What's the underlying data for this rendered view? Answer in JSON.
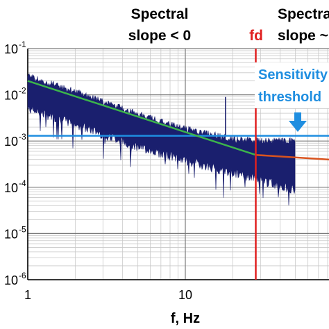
{
  "chart_data": {
    "type": "line",
    "x_scale": "log",
    "y_scale": "log",
    "xlim": [
      1,
      100
    ],
    "ylim": [
      1e-06,
      0.1
    ],
    "grid": true,
    "xlabel": "f, Hz",
    "x_ticks": [
      {
        "value": 1,
        "label": "1"
      },
      {
        "value": 10,
        "label": "10"
      }
    ],
    "y_ticks": [
      {
        "value": 0.1,
        "base": "10",
        "exp": "-1"
      },
      {
        "value": 0.01,
        "base": "10",
        "exp": "-2"
      },
      {
        "value": 0.001,
        "base": "10",
        "exp": "-3"
      },
      {
        "value": 0.0001,
        "base": "10",
        "exp": "-4"
      },
      {
        "value": 1e-05,
        "base": "10",
        "exp": "-5"
      },
      {
        "value": 1e-06,
        "base": "10",
        "exp": "-6"
      }
    ],
    "annotations": {
      "slope_left_line1": "Spectral",
      "slope_left_line2": "slope < 0",
      "slope_right_line1": "Spectral",
      "slope_right_line2": "slope ~",
      "fd_label": "fd",
      "sensitivity_line1": "Sensitivity",
      "sensitivity_line2": "threshold"
    },
    "spectrum": {
      "x_start": 1,
      "x_end": 50,
      "color": "#1a1f6e",
      "envelope_upper": [
        [
          1,
          0.03
        ],
        [
          2,
          0.014
        ],
        [
          5,
          0.0045
        ],
        [
          10,
          0.0022
        ],
        [
          20,
          0.0013
        ],
        [
          28,
          0.0012
        ],
        [
          50,
          0.0012
        ]
      ],
      "envelope_lower": [
        [
          1,
          0.004
        ],
        [
          2,
          0.0018
        ],
        [
          5,
          0.0006
        ],
        [
          10,
          0.0003
        ],
        [
          20,
          0.00016
        ],
        [
          28,
          0.00012
        ],
        [
          50,
          7e-05
        ]
      ],
      "peak": {
        "x": 18,
        "y": 0.009
      }
    },
    "series": [
      {
        "color": "#3cb44b",
        "points": [
          [
            1,
            0.02
          ],
          [
            28,
            0.0005
          ]
        ]
      },
      {
        "color": "#d9531e",
        "points": [
          [
            28,
            0.0005
          ],
          [
            100,
            0.00038
          ]
        ]
      }
    ],
    "threshold": {
      "value": 0.0013,
      "color": "#1f8ee0"
    },
    "fd": {
      "value": 28,
      "color": "#e02020"
    }
  }
}
